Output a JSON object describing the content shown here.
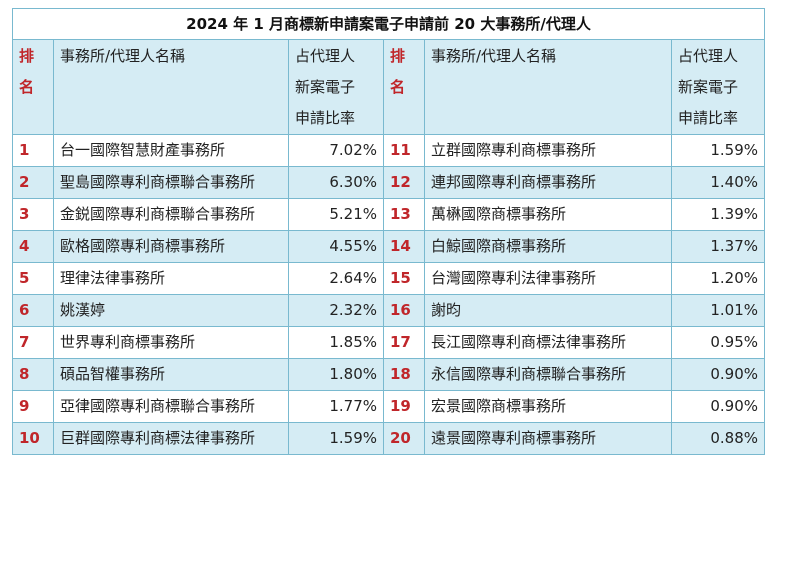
{
  "title": "2024 年 1 月商標新申請案電子申請前 20 大事務所/代理人",
  "headers": {
    "rank": "排\n名",
    "name": "事務所/代理人名稱",
    "ratio": "占代理人\n新案電子\n申請比率"
  },
  "rows": [
    {
      "l_rank": "1",
      "l_name": "台一國際智慧財產事務所",
      "l_pct": "7.02%",
      "r_rank": "11",
      "r_name": "立群國際專利商標事務所",
      "r_pct": "1.59%"
    },
    {
      "l_rank": "2",
      "l_name": "聖島國際專利商標聯合事務所",
      "l_pct": "6.30%",
      "r_rank": "12",
      "r_name": "連邦國際專利商標事務所",
      "r_pct": "1.40%"
    },
    {
      "l_rank": "3",
      "l_name": "金鋭國際專利商標聯合事務所",
      "l_pct": "5.21%",
      "r_rank": "13",
      "r_name": "萬楙國際商標事務所",
      "r_pct": "1.39%"
    },
    {
      "l_rank": "4",
      "l_name": "歐格國際專利商標事務所",
      "l_pct": "4.55%",
      "r_rank": "14",
      "r_name": "白鯨國際商標事務所",
      "r_pct": "1.37%"
    },
    {
      "l_rank": "5",
      "l_name": "理律法律事務所",
      "l_pct": "2.64%",
      "r_rank": "15",
      "r_name": "台灣國際專利法律事務所",
      "r_pct": "1.20%"
    },
    {
      "l_rank": "6",
      "l_name": "姚漢婷",
      "l_pct": "2.32%",
      "r_rank": "16",
      "r_name": "謝昀",
      "r_pct": "1.01%"
    },
    {
      "l_rank": "7",
      "l_name": "世界專利商標事務所",
      "l_pct": "1.85%",
      "r_rank": "17",
      "r_name": "長江國際專利商標法律事務所",
      "r_pct": "0.95%"
    },
    {
      "l_rank": "8",
      "l_name": "碩品智權事務所",
      "l_pct": "1.80%",
      "r_rank": "18",
      "r_name": "永信國際專利商標聯合事務所",
      "r_pct": "0.90%"
    },
    {
      "l_rank": "9",
      "l_name": "亞律國際專利商標聯合事務所",
      "l_pct": "1.77%",
      "r_rank": "19",
      "r_name": "宏景國際商標事務所",
      "r_pct": "0.90%"
    },
    {
      "l_rank": "10",
      "l_name": "巨群國際專利商標法律事務所",
      "l_pct": "1.59%",
      "r_rank": "20",
      "r_name": "遠景國際專利商標事務所",
      "r_pct": "0.88%"
    }
  ],
  "colors": {
    "border": "#79b9cf",
    "band": "#d5ecf4",
    "rank": "#c0262a"
  }
}
